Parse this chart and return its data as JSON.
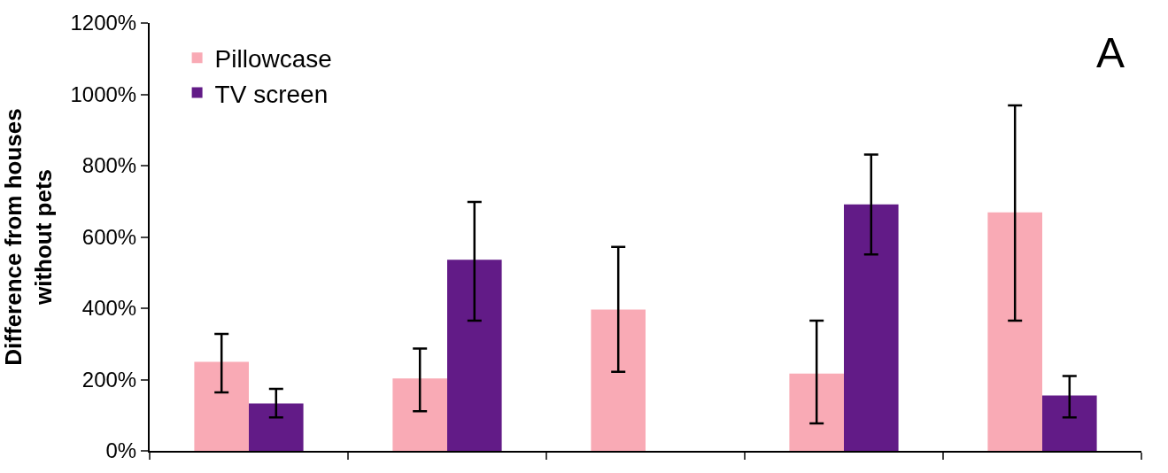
{
  "chart_data": {
    "type": "bar",
    "ylabel": "Difference from houses without pets",
    "categories": [
      null,
      null,
      null,
      null,
      null
    ],
    "series": [
      {
        "name": "Pillowcase",
        "color": "#f9aab5",
        "values": [
          250,
          203,
          396,
          217,
          669
        ],
        "errors": [
          [
            164,
            328
          ],
          [
            111,
            287
          ],
          [
            222,
            572
          ],
          [
            77,
            365
          ],
          [
            365,
            969
          ]
        ]
      },
      {
        "name": "TV screen",
        "color": "#621b87",
        "values": [
          133,
          536,
          null,
          691,
          155
        ],
        "errors": [
          [
            94,
            174
          ],
          [
            365,
            698
          ],
          null,
          [
            551,
            831
          ],
          [
            94,
            210
          ]
        ]
      }
    ],
    "ylim": [
      0,
      1200
    ],
    "yticks": [
      {
        "value": 0,
        "label": "0%"
      },
      {
        "value": 200,
        "label": "200%"
      },
      {
        "value": 400,
        "label": "400%"
      },
      {
        "value": 600,
        "label": "600%"
      },
      {
        "value": 800,
        "label": "800%"
      },
      {
        "value": 1000,
        "label": "1000%"
      },
      {
        "value": 1200,
        "label": "1200%"
      }
    ],
    "annotations": [
      "A"
    ],
    "legend": "top left"
  }
}
